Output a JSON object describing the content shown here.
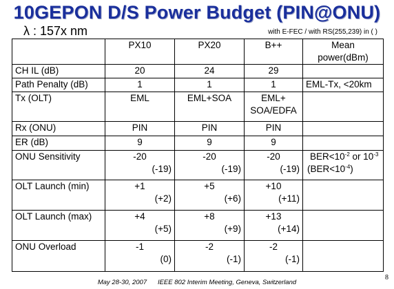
{
  "title": "10GEPON D/S Power Budget (PIN@ONU)",
  "lambda": "λ : 157x nm",
  "fec_note": "with E-FEC / with RS(255,239) in ( )",
  "table": {
    "headers": [
      "",
      "PX10",
      "PX20",
      "B++",
      "Mean power(dBm)"
    ],
    "rows": {
      "ch_il": {
        "label": "CH IL (dB)",
        "px10": "20",
        "px20": "24",
        "bpp": "29",
        "note": ""
      },
      "path_penalty": {
        "label": "Path Penalty (dB)",
        "px10": "1",
        "px20": "1",
        "bpp": "1",
        "note": "EML-Tx, <20km"
      },
      "tx_olt": {
        "label": "Tx (OLT)",
        "px10": "EML",
        "px20": "EML+SOA",
        "bpp_line1": "EML+",
        "bpp_line2": "SOA/EDFA",
        "note": ""
      },
      "rx_onu": {
        "label": "Rx (ONU)",
        "px10": "PIN",
        "px20": "PIN",
        "bpp": "PIN",
        "note": ""
      },
      "er": {
        "label": "ER (dB)",
        "px10": "9",
        "px20": "9",
        "bpp": "9",
        "note": ""
      },
      "onu_sensitivity": {
        "label": "ONU Sensitivity",
        "px10": "-20",
        "px10_rs": "(-19)",
        "px20": "-20",
        "px20_rs": "(-19)",
        "bpp": "-20",
        "bpp_rs": "(-19)",
        "note_a": "BER<10",
        "note_a_exp": "-2",
        "note_b": " or 10",
        "note_b_exp": "-3",
        "note_c": "(BER<10",
        "note_c_exp": "-4",
        "note_d": ")"
      },
      "olt_launch_min": {
        "label": "OLT Launch (min)",
        "px10": "+1",
        "px10_rs": "(+2)",
        "px20": "+5",
        "px20_rs": "(+6)",
        "bpp": "+10",
        "bpp_rs": "(+11)"
      },
      "olt_launch_max": {
        "label": "OLT Launch (max)",
        "px10": "+4",
        "px10_rs": "(+5)",
        "px20": "+8",
        "px20_rs": "(+9)",
        "bpp": "+13",
        "bpp_rs": "(+14)"
      },
      "onu_overload": {
        "label": "ONU Overload",
        "px10": "-1",
        "px10_rs": "(0)",
        "px20": "-2",
        "px20_rs": "(-1)",
        "bpp": "-2",
        "bpp_rs": "(-1)"
      }
    }
  },
  "footer": "May 28-30, 2007      IEEE 802 Interim Meeting, Geneva, Switzerland",
  "page_number": "8",
  "colors": {
    "title": "#1a2f9c"
  }
}
